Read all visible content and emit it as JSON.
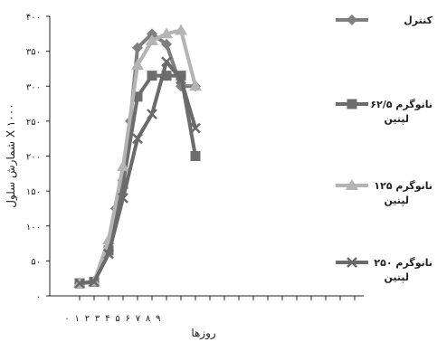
{
  "chart_data": {
    "type": "line",
    "xlabel": "روزها",
    "ylabel": "شمارش سلول X ۱۰۰۰",
    "x_tick_labels": [
      "۰",
      "۱",
      "۲",
      "۳",
      "۴",
      "۵",
      "۶",
      "۷",
      "۸",
      "۹"
    ],
    "y_tick_labels": [
      "۰",
      "۵۰",
      "۱۰۰",
      "۱۵۰",
      "۲۰۰",
      "۲۵۰",
      "۳۰۰",
      "۳۵۰",
      "۴۰۰"
    ],
    "ylim": [
      0,
      400
    ],
    "xlim": [
      0,
      10
    ],
    "grid": false,
    "legend_position": "right",
    "series": [
      {
        "name": "کنترل",
        "color": "#7f7f7f",
        "marker": "diamond",
        "x": [
          0,
          1,
          2,
          2.5,
          3,
          3.5,
          4,
          5,
          6,
          7,
          8
        ],
        "y": [
          18,
          20,
          65,
          125,
          165,
          250,
          355,
          375,
          360,
          300,
          300
        ],
        "x_values": [
          0,
          1,
          2,
          2.5,
          3,
          3.5,
          4,
          5,
          6,
          7,
          8
        ]
      },
      {
        "name": "۶۲/۵ نانوگرم لپتین",
        "color": "#6d6d6d",
        "marker": "square",
        "x": [
          0,
          1,
          2,
          3,
          4,
          5,
          6,
          7,
          8
        ],
        "y": [
          18,
          20,
          65,
          160,
          285,
          315,
          315,
          315,
          200
        ],
        "x_values": [
          0,
          1,
          2,
          3,
          4,
          5,
          6,
          7,
          8
        ]
      },
      {
        "name": "۱۲۵ نانوگرم لپتین",
        "color": "#b4b4b4",
        "marker": "triangle",
        "x": [
          0,
          1,
          2,
          3,
          4,
          5,
          6,
          7,
          8
        ],
        "y": [
          18,
          20,
          80,
          185,
          330,
          365,
          375,
          380,
          300
        ],
        "x_values": [
          0,
          1,
          2,
          3,
          4,
          5,
          6,
          7,
          8
        ]
      },
      {
        "name": "۲۵۰ نانوگرم لپتین",
        "color": "#6a6a6a",
        "marker": "x",
        "x": [
          0,
          1,
          2,
          3,
          4,
          5,
          6,
          7,
          8
        ],
        "y": [
          18,
          20,
          60,
          140,
          225,
          260,
          335,
          310,
          240
        ],
        "x_values": [
          0,
          1,
          2,
          3,
          4,
          5,
          6,
          7,
          8
        ]
      }
    ],
    "legend": [
      {
        "label": "کنترل"
      },
      {
        "label": "۶۲/۵ نانوگرم",
        "label2": "لپتین"
      },
      {
        "label": "۱۲۵ نانوگرم",
        "label2": "لپتین"
      },
      {
        "label": "۲۵۰ نانوگرم",
        "label2": "لپتین"
      }
    ]
  }
}
